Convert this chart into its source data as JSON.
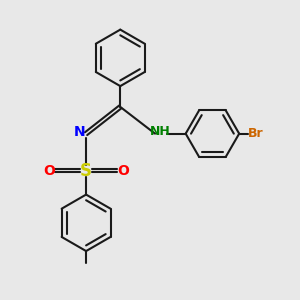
{
  "bg_color": "#e8e8e8",
  "bond_color": "#1a1a1a",
  "n_color": "#0000ff",
  "nh_color": "#008000",
  "s_color": "#cccc00",
  "o_color": "#ff0000",
  "br_color": "#cc6600",
  "line_width": 1.5,
  "figsize": [
    3.0,
    3.0
  ],
  "dpi": 100,
  "xlim": [
    0,
    10
  ],
  "ylim": [
    0,
    10
  ]
}
